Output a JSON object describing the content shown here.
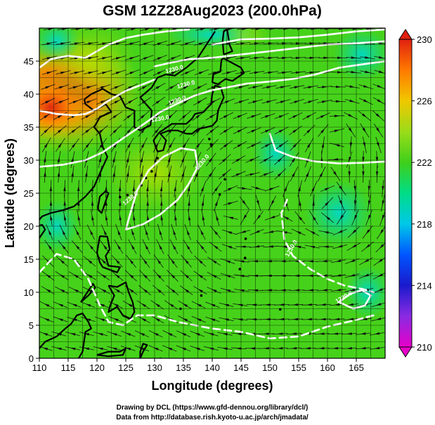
{
  "chart_data": {
    "type": "heatmap",
    "title": "GSM 12Z28Aug2023 (200.0hPa)",
    "xlabel": "Longitude (degrees)",
    "ylabel": "Latitude  (degrees)",
    "xlim": [
      110,
      170
    ],
    "ylim": [
      0,
      50
    ],
    "x_ticks": [
      110,
      115,
      120,
      125,
      130,
      135,
      140,
      145,
      150,
      155,
      160,
      165
    ],
    "y_ticks": [
      0,
      5,
      10,
      15,
      20,
      25,
      30,
      35,
      40,
      45
    ],
    "grid": true,
    "colorbar": {
      "min": 210,
      "max": 230,
      "ticks": [
        210,
        214,
        218,
        222,
        226,
        230
      ],
      "stops": [
        "#e600c8",
        "#8a2be2",
        "#1a1acc",
        "#0055ff",
        "#00c8e8",
        "#00dd88",
        "#3fcf1a",
        "#9adc1a",
        "#f0c800",
        "#ff7a00",
        "#e02010"
      ]
    },
    "contour_labels": [
      "1230.0",
      "1230.0",
      "1230.0",
      "1230.0",
      "1230.0",
      "1230.0",
      "1230.0",
      "1230.0"
    ],
    "features": {
      "warm_max": {
        "lon": 112,
        "lat": 40,
        "value": 230
      },
      "anticyclones": [
        {
          "lon": 143,
          "lat": 22
        },
        {
          "lon": 162,
          "lat": 34
        },
        {
          "lon": 161,
          "lat": 22
        }
      ]
    }
  },
  "credits": {
    "line1": "Drawing by DCL (https://www.gfd-dennou.org/library/dcl/)",
    "line2": "Data from http://database.rish.kyoto-u.ac.jp/arch/jmadata/"
  },
  "colors": {
    "contour": "#ffffff",
    "coast": "#000000",
    "stream": "#000000"
  }
}
